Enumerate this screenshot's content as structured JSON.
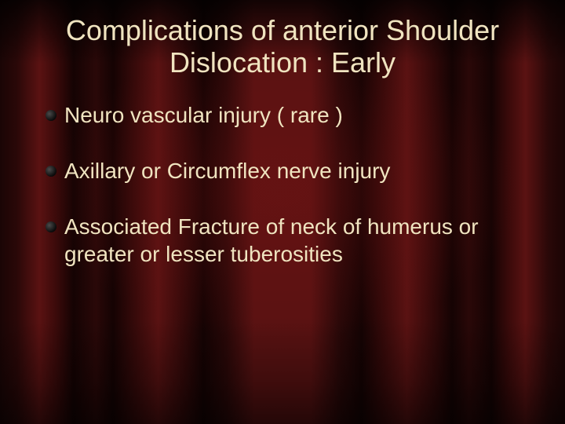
{
  "slide": {
    "title": "Complications of anterior Shoulder Dislocation : Early",
    "title_fontsize": 36,
    "title_color": "#f0e4c0",
    "body_fontsize": 28,
    "body_color": "#f0e4c0",
    "bullet_color": "#0a0a0a",
    "background": {
      "type": "curtain",
      "base_colors": [
        "#1a0505",
        "#5a1212",
        "#150303"
      ],
      "highlight_color": "#5a1212",
      "shadow_color": "#0a0202"
    },
    "bullets": [
      "Neuro  vascular injury ( rare )",
      "Axillary  or  Circumflex nerve injury",
      "Associated Fracture of neck of humerus or greater or lesser tuberosities"
    ]
  }
}
